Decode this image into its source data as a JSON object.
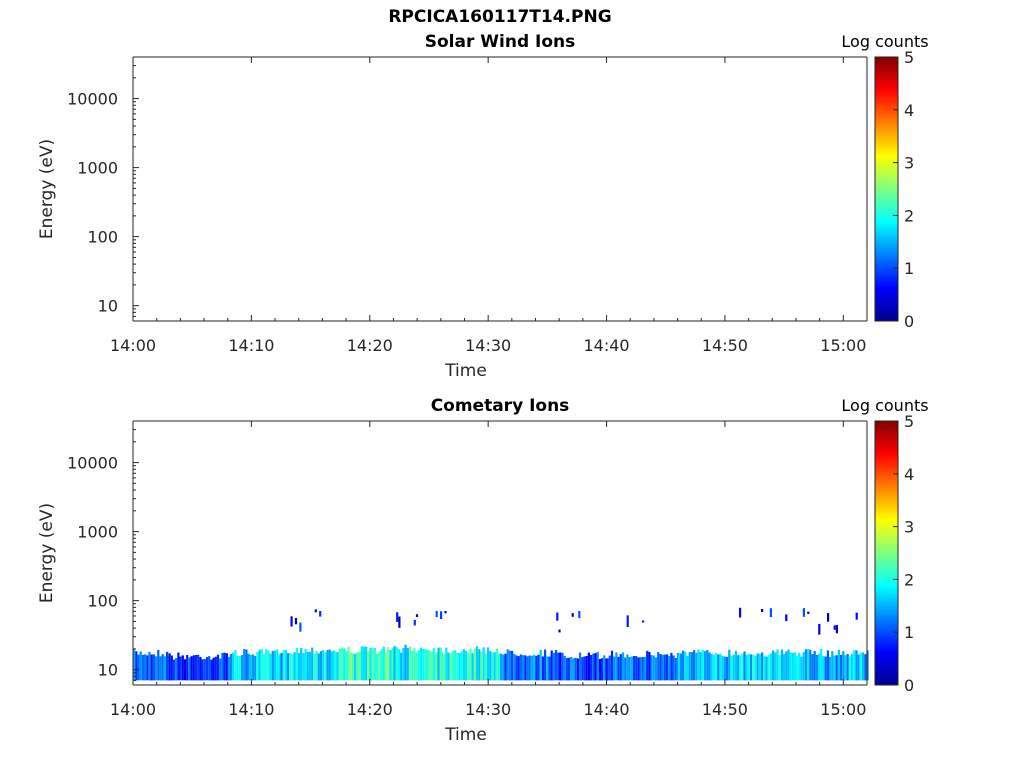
{
  "figure": {
    "file_title": "RPCICA160117T14.PNG"
  },
  "chart_data": [
    {
      "type": "heatmap",
      "title": "Solar Wind Ions",
      "xlabel": "Time",
      "ylabel": "Energy (eV)",
      "x_ticks": [
        "14:00",
        "14:10",
        "14:20",
        "14:30",
        "14:40",
        "14:50",
        "15:00"
      ],
      "x_range": [
        "14:00",
        "15:02"
      ],
      "y_scale": "log",
      "y_ticks": [
        "10",
        "100",
        "1000",
        "10000"
      ],
      "y_range": [
        6,
        40000
      ],
      "colorbar": {
        "label": "Log counts",
        "ticks": [
          "0",
          "1",
          "2",
          "3",
          "4",
          "5"
        ],
        "range": [
          0,
          5
        ],
        "colormap": "jet"
      },
      "data": []
    },
    {
      "type": "heatmap",
      "title": "Cometary Ions",
      "xlabel": "Time",
      "ylabel": "Energy (eV)",
      "x_ticks": [
        "14:00",
        "14:10",
        "14:20",
        "14:30",
        "14:40",
        "14:50",
        "15:00"
      ],
      "x_range": [
        "14:00",
        "15:02"
      ],
      "y_scale": "log",
      "y_ticks": [
        "10",
        "100",
        "1000",
        "10000"
      ],
      "y_range": [
        6,
        40000
      ],
      "colorbar": {
        "label": "Log counts",
        "ticks": [
          "0",
          "1",
          "2",
          "3",
          "4",
          "5"
        ],
        "range": [
          0,
          5
        ],
        "colormap": "jet"
      },
      "data": [
        {
          "time_start": "14:00",
          "time_end": "14:03",
          "energy_min": 7,
          "energy_max": 20,
          "log_counts": 1.1
        },
        {
          "time_start": "14:03",
          "time_end": "14:08",
          "energy_min": 7,
          "energy_max": 18,
          "log_counts": 0.9
        },
        {
          "time_start": "14:08",
          "time_end": "14:13",
          "energy_min": 7,
          "energy_max": 20,
          "log_counts": 1.6
        },
        {
          "time_start": "14:13",
          "time_end": "14:17",
          "energy_min": 7,
          "energy_max": 22,
          "log_counts": 1.7
        },
        {
          "time_start": "14:17",
          "time_end": "14:22",
          "energy_min": 7,
          "energy_max": 22,
          "log_counts": 2.1
        },
        {
          "time_start": "14:22",
          "time_end": "14:26",
          "energy_min": 7,
          "energy_max": 23,
          "log_counts": 1.9
        },
        {
          "time_start": "14:26",
          "time_end": "14:31",
          "energy_min": 7,
          "energy_max": 22,
          "log_counts": 2.0
        },
        {
          "time_start": "14:31",
          "time_end": "14:36",
          "energy_min": 7,
          "energy_max": 20,
          "log_counts": 1.2
        },
        {
          "time_start": "14:36",
          "time_end": "14:40",
          "energy_min": 7,
          "energy_max": 18,
          "log_counts": 1.0
        },
        {
          "time_start": "14:40",
          "time_end": "14:46",
          "energy_min": 7,
          "energy_max": 19,
          "log_counts": 1.1
        },
        {
          "time_start": "14:46",
          "time_end": "14:51",
          "energy_min": 7,
          "energy_max": 20,
          "log_counts": 1.6
        },
        {
          "time_start": "14:51",
          "time_end": "14:56",
          "energy_min": 7,
          "energy_max": 20,
          "log_counts": 1.7
        },
        {
          "time_start": "14:56",
          "time_end": "15:02",
          "energy_min": 7,
          "energy_max": 20,
          "log_counts": 1.5
        },
        {
          "time_start": "14:12",
          "time_end": "14:24",
          "energy_min": 40,
          "energy_max": 80,
          "log_counts": 0.7
        },
        {
          "time_start": "14:25",
          "time_end": "14:28",
          "energy_min": 55,
          "energy_max": 80,
          "log_counts": 0.8
        },
        {
          "time_start": "14:35",
          "time_end": "14:44",
          "energy_min": 30,
          "energy_max": 80,
          "log_counts": 0.6
        },
        {
          "time_start": "14:51",
          "time_end": "15:02",
          "energy_min": 35,
          "energy_max": 80,
          "log_counts": 0.6
        }
      ]
    }
  ]
}
